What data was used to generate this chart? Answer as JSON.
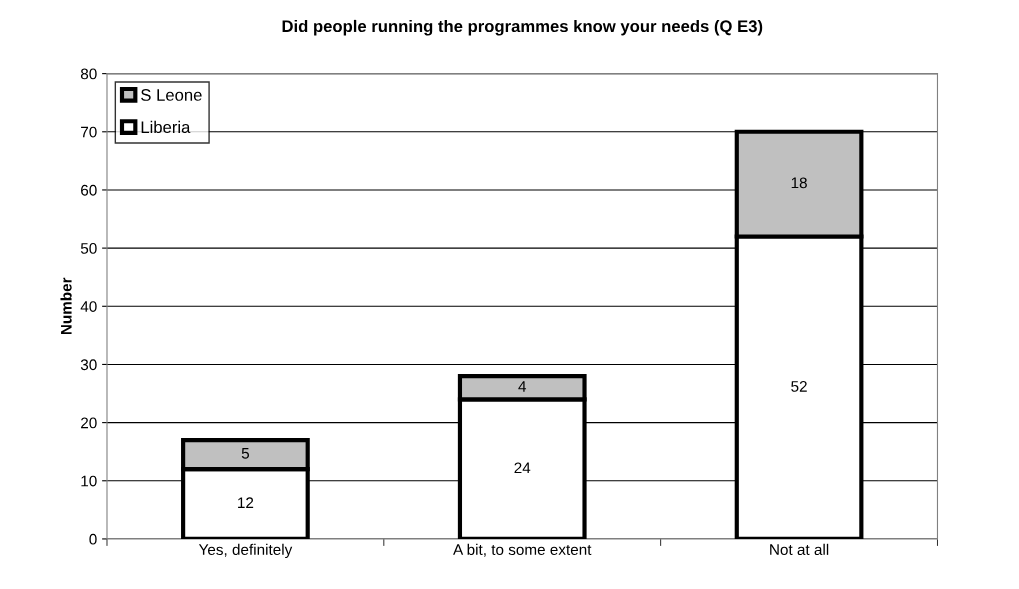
{
  "chart_data": {
    "type": "bar",
    "title": "Did people running the programmes know your needs (Q E3)",
    "ylabel": "Number",
    "categories": [
      "Yes, definitely",
      "A bit, to some extent",
      "Not at all"
    ],
    "stacked": true,
    "series": [
      {
        "name": "Liberia",
        "color": "#ffffff",
        "values": [
          12,
          24,
          52
        ]
      },
      {
        "name": "S Leone",
        "color": "#c0c0c0",
        "values": [
          5,
          4,
          18
        ]
      }
    ],
    "ylim": [
      0,
      80
    ],
    "yticks": [
      0,
      10,
      20,
      30,
      40,
      50,
      60,
      70,
      80
    ],
    "grid": "y",
    "legend": "top left",
    "data_labels": true
  }
}
